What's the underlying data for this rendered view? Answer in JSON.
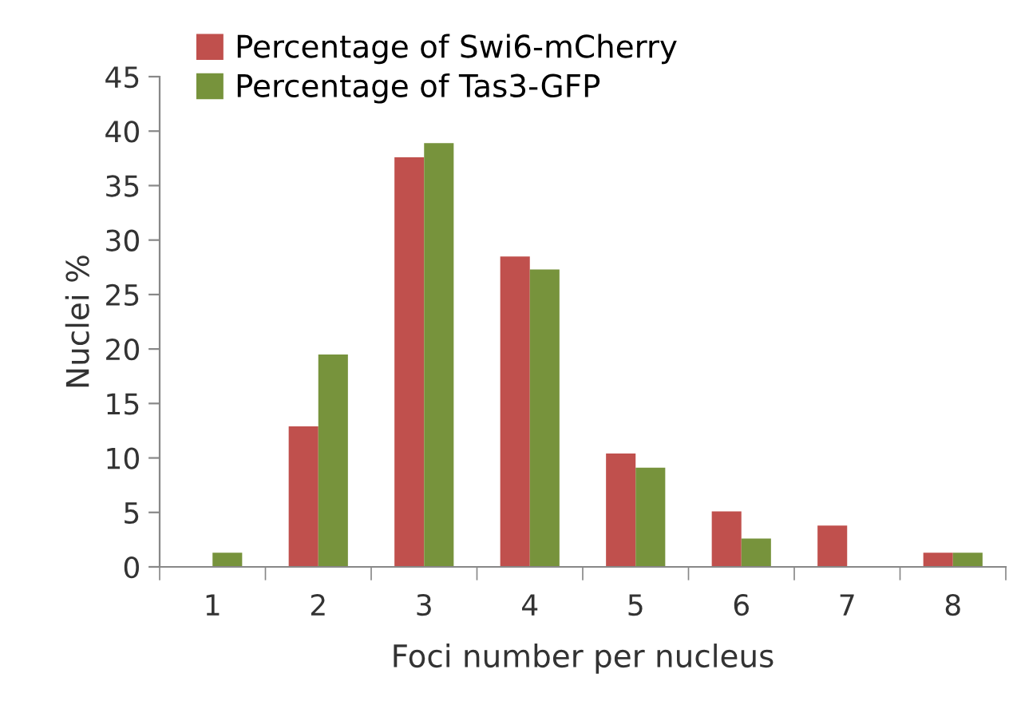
{
  "chart_data": {
    "type": "bar",
    "xlabel": "Foci number per nucleus",
    "ylabel": "Nuclei %",
    "categories": [
      "1",
      "2",
      "3",
      "4",
      "5",
      "6",
      "7",
      "8"
    ],
    "series": [
      {
        "name": "Percentage of Swi6-mCherry",
        "color": "#c0504d",
        "values": [
          0,
          12.9,
          37.6,
          28.5,
          10.4,
          5.1,
          3.8,
          1.3
        ]
      },
      {
        "name": "Percentage of Tas3-GFP",
        "color": "#77933c",
        "values": [
          1.3,
          19.5,
          38.9,
          27.3,
          9.1,
          2.6,
          0,
          1.3
        ]
      }
    ],
    "ylim": [
      0,
      45
    ],
    "yticks": [
      0,
      5,
      10,
      15,
      20,
      25,
      30,
      35,
      40,
      45
    ],
    "grid": false,
    "legend": "top"
  }
}
